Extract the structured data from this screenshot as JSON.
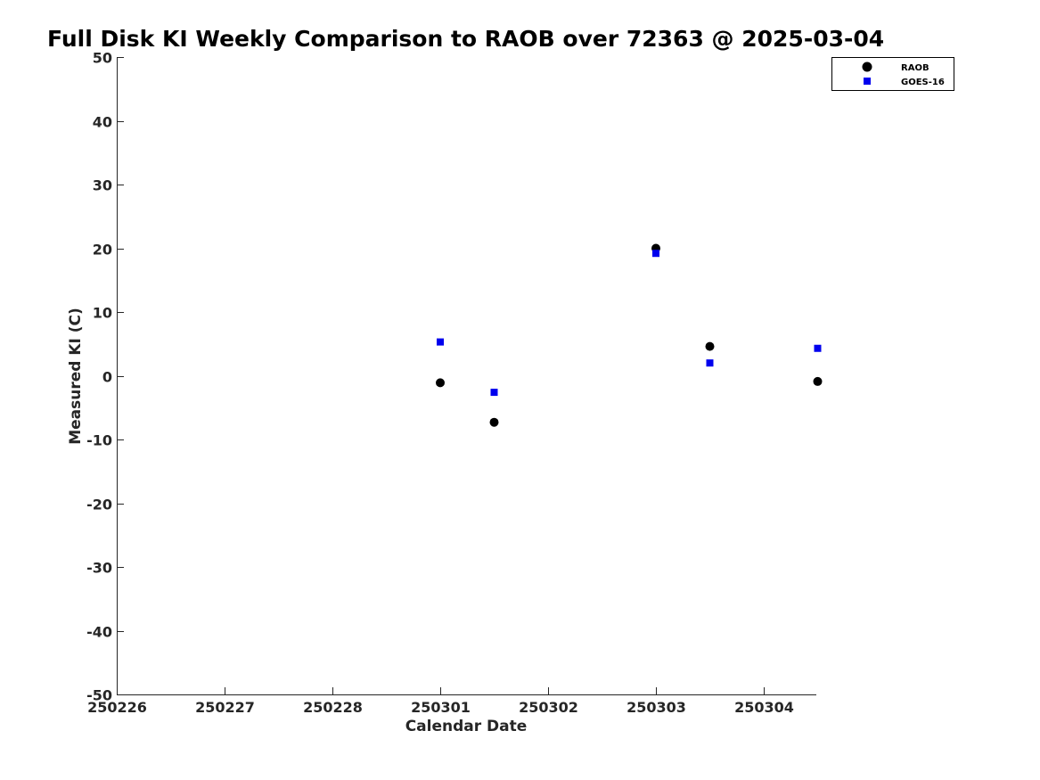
{
  "chart_data": {
    "type": "scatter",
    "title": "Full Disk KI Weekly Comparison to RAOB over 72363 @ 2025-03-04",
    "xlabel": "Calendar Date",
    "ylabel": "Measured KI (C)",
    "xlim": [
      250226,
      250304.5
    ],
    "ylim": [
      -50,
      50
    ],
    "x_tick_labels": [
      "250226",
      "250227",
      "250228",
      "250301",
      "250302",
      "250303",
      "250304"
    ],
    "y_ticks": [
      50,
      40,
      30,
      20,
      10,
      0,
      -10,
      -20,
      -30,
      -40,
      -50
    ],
    "grid": false,
    "legend_position": "top-right",
    "series": [
      {
        "name": "RAOB",
        "marker": "circle",
        "color": "#000000",
        "points": [
          {
            "x": 250301.0,
            "y": -1.1
          },
          {
            "x": 250301.5,
            "y": -7.3
          },
          {
            "x": 250303.0,
            "y": 20.0
          },
          {
            "x": 250303.5,
            "y": 4.6
          },
          {
            "x": 250304.5,
            "y": -0.9
          }
        ]
      },
      {
        "name": "GOES-16",
        "marker": "square",
        "color": "#0000ee",
        "points": [
          {
            "x": 250301.0,
            "y": 5.3
          },
          {
            "x": 250301.5,
            "y": -2.6
          },
          {
            "x": 250303.0,
            "y": 19.2
          },
          {
            "x": 250303.5,
            "y": 2.0
          },
          {
            "x": 250304.5,
            "y": 4.3
          }
        ]
      }
    ]
  }
}
